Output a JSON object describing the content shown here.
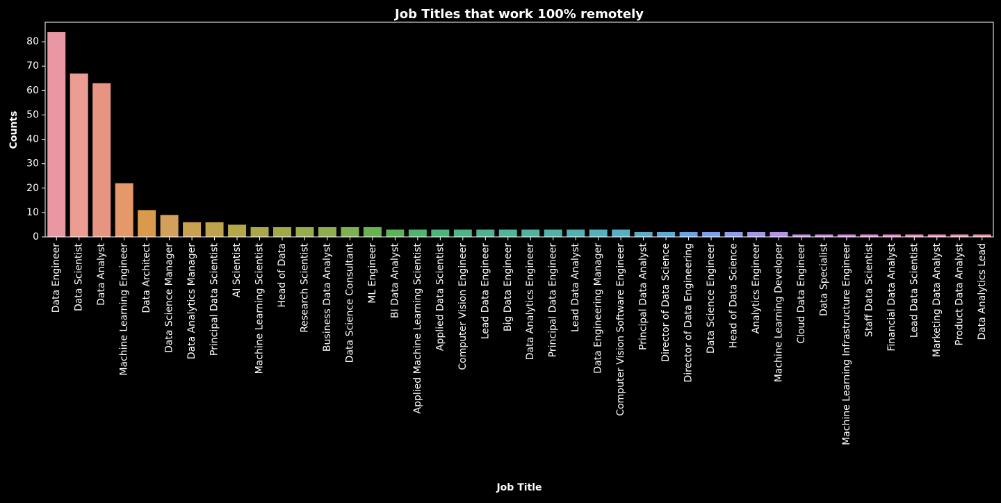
{
  "chart_data": {
    "type": "bar",
    "title": "Job Titles that work 100% remotely",
    "xlabel": "Job Title",
    "ylabel": "Counts",
    "ylim": [
      0,
      88
    ],
    "yticks": [
      0,
      10,
      20,
      30,
      40,
      50,
      60,
      70,
      80
    ],
    "grid": false,
    "background": "#000000",
    "categories": [
      "Data Engineer",
      "Data Scientist",
      "Data Analyst",
      "Machine Learning Engineer",
      "Data Architect",
      "Data Science Manager",
      "Data Analytics Manager",
      "Principal Data Scientist",
      "AI Scientist",
      "Machine Learning Scientist",
      "Head of Data",
      "Research Scientist",
      "Business Data Analyst",
      "Data Science Consultant",
      "ML Engineer",
      "BI Data Analyst",
      "Applied Machine Learning Scientist",
      "Applied Data Scientist",
      "Computer Vision Engineer",
      "Lead Data Engineer",
      "Big Data Engineer",
      "Data Analytics Engineer",
      "Principal Data Engineer",
      "Lead Data Analyst",
      "Data Engineering Manager",
      "Computer Vision Software Engineer",
      "Principal Data Analyst",
      "Director of Data Science",
      "Director of Data Engineering",
      "Data Science Engineer",
      "Head of Data Science",
      "Analytics Engineer",
      "Machine Learning Developer",
      "Cloud Data Engineer",
      "Data Specialist",
      "Machine Learning Infrastructure Engineer",
      "Staff Data Scientist",
      "Financial Data Analyst",
      "Lead Data Scientist",
      "Marketing Data Analyst",
      "Product Data Analyst",
      "Data Analytics Lead"
    ],
    "values": [
      84,
      67,
      63,
      22,
      11,
      9,
      6,
      6,
      5,
      4,
      4,
      4,
      4,
      4,
      4,
      3,
      3,
      3,
      3,
      3,
      3,
      3,
      3,
      3,
      3,
      3,
      2,
      2,
      2,
      2,
      2,
      2,
      2,
      1,
      1,
      1,
      1,
      1,
      1,
      1,
      1,
      1
    ],
    "colors": [
      "#ea97a4",
      "#eb9d94",
      "#e79580",
      "#e5986a",
      "#d99a4e",
      "#d2a05b",
      "#c8a24f",
      "#bea34e",
      "#b5a648",
      "#aaa74a",
      "#a1a948",
      "#98ab4d",
      "#8fad4f",
      "#80b04f",
      "#6ab251",
      "#5bb25a",
      "#50b36e",
      "#4db47b",
      "#4fb486",
      "#50b38f",
      "#51b398",
      "#51b2a0",
      "#53b1a8",
      "#54b0b1",
      "#55b0b9",
      "#57afc2",
      "#59adcb",
      "#5babd6",
      "#67a6e2",
      "#7aa2ea",
      "#8f9deb",
      "#a397ea",
      "#b491ea",
      "#c38bea",
      "#cd87e8",
      "#d684e2",
      "#de84d8",
      "#e486cd",
      "#e78ac3",
      "#e98db8",
      "#ea90ae",
      "#eb93a6"
    ]
  }
}
